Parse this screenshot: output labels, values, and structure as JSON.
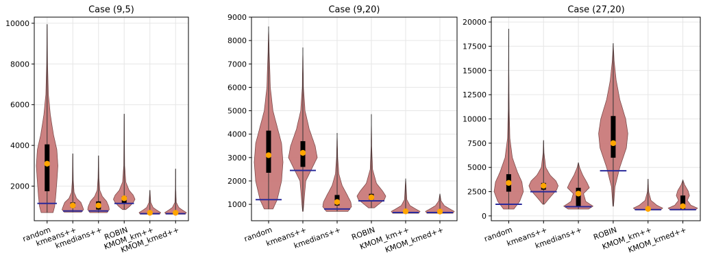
{
  "colors": {
    "violin_fill": "#c97a7a",
    "violin_stroke": "#7b4a4a",
    "box": "#000000",
    "mean_marker": "#ffa500",
    "ref_line": "#2a2a9a",
    "grid": "#e6e6e6"
  },
  "chart_data": [
    {
      "type": "violin",
      "title": "Case (9,5)",
      "categories": [
        "random",
        "kmeans++",
        "kmedians++",
        "ROBIN",
        "KMOM_km++",
        "KMOM_kmed++"
      ],
      "ylim": [
        300,
        10300
      ],
      "yticks": [
        2000,
        4000,
        6000,
        8000,
        10000
      ],
      "grid": true,
      "violins": [
        {
          "min": 700,
          "max": 9950,
          "q1": 1750,
          "q3": 4050,
          "mean": 3100,
          "ref": 1150,
          "profile": [
            [
              700,
              0.55
            ],
            [
              1000,
              0.7
            ],
            [
              1500,
              0.8
            ],
            [
              2200,
              0.9
            ],
            [
              3000,
              1.0
            ],
            [
              3800,
              0.9
            ],
            [
              4500,
              0.6
            ],
            [
              5500,
              0.3
            ],
            [
              6500,
              0.12
            ],
            [
              8000,
              0.04
            ],
            [
              9950,
              0.0
            ]
          ]
        },
        {
          "min": 720,
          "max": 3600,
          "q1": 950,
          "q3": 1200,
          "mean": 1050,
          "ref": 780,
          "profile": [
            [
              720,
              0.8
            ],
            [
              850,
              1.0
            ],
            [
              1000,
              0.9
            ],
            [
              1200,
              0.75
            ],
            [
              1400,
              0.35
            ],
            [
              1700,
              0.12
            ],
            [
              2300,
              0.04
            ],
            [
              3600,
              0.0
            ]
          ]
        },
        {
          "min": 700,
          "max": 3500,
          "q1": 850,
          "q3": 1250,
          "mean": 1050,
          "ref": 780,
          "profile": [
            [
              700,
              0.8
            ],
            [
              850,
              1.0
            ],
            [
              1000,
              0.95
            ],
            [
              1250,
              0.75
            ],
            [
              1500,
              0.35
            ],
            [
              1800,
              0.12
            ],
            [
              2400,
              0.04
            ],
            [
              3500,
              0.0
            ]
          ]
        },
        {
          "min": 850,
          "max": 5550,
          "q1": 1150,
          "q3": 1500,
          "mean": 1400,
          "ref": 1150,
          "profile": [
            [
              850,
              0.15
            ],
            [
              1000,
              0.5
            ],
            [
              1200,
              0.85
            ],
            [
              1350,
              1.0
            ],
            [
              1550,
              0.85
            ],
            [
              1800,
              0.45
            ],
            [
              2200,
              0.15
            ],
            [
              3000,
              0.04
            ],
            [
              5550,
              0.0
            ]
          ]
        },
        {
          "min": 620,
          "max": 1800,
          "q1": 640,
          "q3": 720,
          "mean": 690,
          "ref": 650,
          "profile": [
            [
              620,
              0.9
            ],
            [
              700,
              1.0
            ],
            [
              800,
              0.7
            ],
            [
              950,
              0.3
            ],
            [
              1200,
              0.08
            ],
            [
              1800,
              0.0
            ]
          ]
        },
        {
          "min": 620,
          "max": 2850,
          "q1": 640,
          "q3": 720,
          "mean": 690,
          "ref": 650,
          "profile": [
            [
              620,
              0.9
            ],
            [
              700,
              1.0
            ],
            [
              800,
              0.7
            ],
            [
              950,
              0.3
            ],
            [
              1200,
              0.06
            ],
            [
              2000,
              0.01
            ],
            [
              2850,
              0.0
            ]
          ]
        }
      ]
    },
    {
      "type": "violin",
      "title": "Case (9,20)",
      "categories": [
        "random",
        "kmeans++",
        "kmedians++",
        "ROBIN",
        "KMOM_km++",
        "KMOM_kmed++"
      ],
      "ylim": [
        300,
        9000
      ],
      "yticks": [
        1000,
        2000,
        3000,
        4000,
        5000,
        6000,
        7000,
        8000,
        9000
      ],
      "grid": true,
      "violins": [
        {
          "min": 800,
          "max": 8600,
          "q1": 2350,
          "q3": 4150,
          "mean": 3100,
          "ref": 1200,
          "profile": [
            [
              800,
              0.3
            ],
            [
              1200,
              0.6
            ],
            [
              2000,
              0.9
            ],
            [
              2800,
              1.0
            ],
            [
              3600,
              0.9
            ],
            [
              4300,
              0.6
            ],
            [
              5000,
              0.3
            ],
            [
              6000,
              0.12
            ],
            [
              7500,
              0.04
            ],
            [
              8600,
              0.0
            ]
          ]
        },
        {
          "min": 700,
          "max": 7700,
          "q1": 2600,
          "q3": 3700,
          "mean": 3200,
          "ref": 2450,
          "profile": [
            [
              700,
              0.02
            ],
            [
              2000,
              0.2
            ],
            [
              2500,
              0.6
            ],
            [
              3000,
              1.0
            ],
            [
              3500,
              0.85
            ],
            [
              4200,
              0.45
            ],
            [
              5000,
              0.15
            ],
            [
              6000,
              0.04
            ],
            [
              7700,
              0.0
            ]
          ]
        },
        {
          "min": 700,
          "max": 4050,
          "q1": 950,
          "q3": 1400,
          "mean": 1100,
          "ref": 800,
          "profile": [
            [
              700,
              0.75
            ],
            [
              900,
              1.0
            ],
            [
              1100,
              0.95
            ],
            [
              1400,
              0.7
            ],
            [
              1800,
              0.35
            ],
            [
              2300,
              0.12
            ],
            [
              3000,
              0.04
            ],
            [
              4050,
              0.0
            ]
          ]
        },
        {
          "min": 850,
          "max": 4850,
          "q1": 1200,
          "q3": 1450,
          "mean": 1300,
          "ref": 1150,
          "profile": [
            [
              850,
              0.2
            ],
            [
              1000,
              0.5
            ],
            [
              1200,
              0.9
            ],
            [
              1350,
              1.0
            ],
            [
              1550,
              0.8
            ],
            [
              1900,
              0.35
            ],
            [
              2500,
              0.08
            ],
            [
              3500,
              0.02
            ],
            [
              4850,
              0.0
            ]
          ]
        },
        {
          "min": 620,
          "max": 2100,
          "q1": 640,
          "q3": 720,
          "mean": 700,
          "ref": 650,
          "profile": [
            [
              620,
              0.9
            ],
            [
              700,
              1.0
            ],
            [
              800,
              0.7
            ],
            [
              950,
              0.3
            ],
            [
              1200,
              0.08
            ],
            [
              2100,
              0.0
            ]
          ]
        },
        {
          "min": 620,
          "max": 1450,
          "q1": 640,
          "q3": 720,
          "mean": 690,
          "ref": 650,
          "profile": [
            [
              620,
              0.9
            ],
            [
              700,
              1.0
            ],
            [
              800,
              0.7
            ],
            [
              950,
              0.3
            ],
            [
              1150,
              0.08
            ],
            [
              1450,
              0.0
            ]
          ]
        }
      ]
    },
    {
      "type": "violin",
      "title": "Case (27,20)",
      "categories": [
        "random",
        "kmeans++",
        "kmedians++",
        "ROBIN",
        "KMOM_km++",
        "KMOM_kmed++"
      ],
      "ylim": [
        -500,
        20500
      ],
      "yticks": [
        0,
        2500,
        5000,
        7500,
        10000,
        12500,
        15000,
        17500,
        20000
      ],
      "grid": true,
      "violins": [
        {
          "min": 700,
          "max": 19300,
          "q1": 2500,
          "q3": 4300,
          "mean": 3400,
          "ref": 1200,
          "profile": [
            [
              700,
              0.35
            ],
            [
              1500,
              0.75
            ],
            [
              2500,
              1.0
            ],
            [
              3500,
              0.9
            ],
            [
              4500,
              0.6
            ],
            [
              6000,
              0.25
            ],
            [
              8000,
              0.08
            ],
            [
              11000,
              0.03
            ],
            [
              15000,
              0.01
            ],
            [
              19300,
              0.0
            ]
          ]
        },
        {
          "min": 1200,
          "max": 7800,
          "q1": 2700,
          "q3": 3400,
          "mean": 3100,
          "ref": 2500,
          "profile": [
            [
              1200,
              0.05
            ],
            [
              2000,
              0.5
            ],
            [
              2700,
              0.9
            ],
            [
              3100,
              1.0
            ],
            [
              3600,
              0.85
            ],
            [
              4200,
              0.45
            ],
            [
              5000,
              0.15
            ],
            [
              6500,
              0.03
            ],
            [
              7800,
              0.0
            ]
          ]
        },
        {
          "min": 700,
          "max": 5500,
          "q1": 1000,
          "q3": 2900,
          "mean": 2300,
          "ref": 950,
          "profile": [
            [
              700,
              0.7
            ],
            [
              1000,
              1.0
            ],
            [
              1500,
              0.5
            ],
            [
              2300,
              0.35
            ],
            [
              2900,
              0.75
            ],
            [
              3400,
              0.6
            ],
            [
              4200,
              0.3
            ],
            [
              5000,
              0.08
            ],
            [
              5500,
              0.0
            ]
          ]
        },
        {
          "min": 1000,
          "max": 17800,
          "q1": 6000,
          "q3": 10300,
          "mean": 7500,
          "ref": 4650,
          "profile": [
            [
              1000,
              0.02
            ],
            [
              3000,
              0.12
            ],
            [
              5000,
              0.45
            ],
            [
              7000,
              0.9
            ],
            [
              8500,
              1.0
            ],
            [
              10000,
              0.85
            ],
            [
              12000,
              0.45
            ],
            [
              14000,
              0.2
            ],
            [
              16000,
              0.06
            ],
            [
              17800,
              0.0
            ]
          ]
        },
        {
          "min": 600,
          "max": 3800,
          "q1": 640,
          "q3": 760,
          "mean": 720,
          "ref": 650,
          "profile": [
            [
              600,
              0.85
            ],
            [
              800,
              1.0
            ],
            [
              1100,
              0.6
            ],
            [
              1600,
              0.2
            ],
            [
              2500,
              0.04
            ],
            [
              3800,
              0.0
            ]
          ]
        },
        {
          "min": 600,
          "max": 3700,
          "q1": 650,
          "q3": 2100,
          "mean": 1000,
          "ref": 650,
          "profile": [
            [
              600,
              0.85
            ],
            [
              800,
              1.0
            ],
            [
              1100,
              0.55
            ],
            [
              1600,
              0.3
            ],
            [
              2100,
              0.45
            ],
            [
              2600,
              0.35
            ],
            [
              3200,
              0.12
            ],
            [
              3700,
              0.0
            ]
          ]
        }
      ]
    }
  ]
}
